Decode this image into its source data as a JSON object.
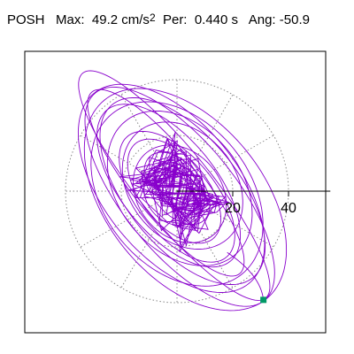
{
  "header": {
    "station": "POSH",
    "max_label": "Max:",
    "max_value": "49.2",
    "max_unit": "cm/s",
    "max_unit_exp": "2",
    "per_label": "Per:",
    "per_value": "0.440 s",
    "ang_label": "Ang:",
    "ang_value": "-50.9"
  },
  "colors": {
    "trace": "#8800cc",
    "marker": "#009966",
    "axis": "#000000",
    "grid": "#888888",
    "frame": "#000000"
  },
  "chart_data": {
    "type": "scatter",
    "title": "",
    "xlabel": "",
    "ylabel": "",
    "radial_ticks": [
      20,
      40
    ],
    "radial_tick_labels": [
      "20",
      "40"
    ],
    "rings": [
      20,
      40
    ],
    "spoke_angles_deg": [
      0,
      30,
      60,
      90,
      120,
      150,
      180,
      210,
      240,
      270,
      300,
      330
    ],
    "max_amplitude": 49.2,
    "period_s": 0.44,
    "principal_angle_deg": -50.9,
    "xlim": [
      -57,
      55
    ],
    "ylim": [
      -52,
      54
    ],
    "end_marker": {
      "x": 31,
      "y": -39
    },
    "grid": true,
    "legend": "none"
  }
}
